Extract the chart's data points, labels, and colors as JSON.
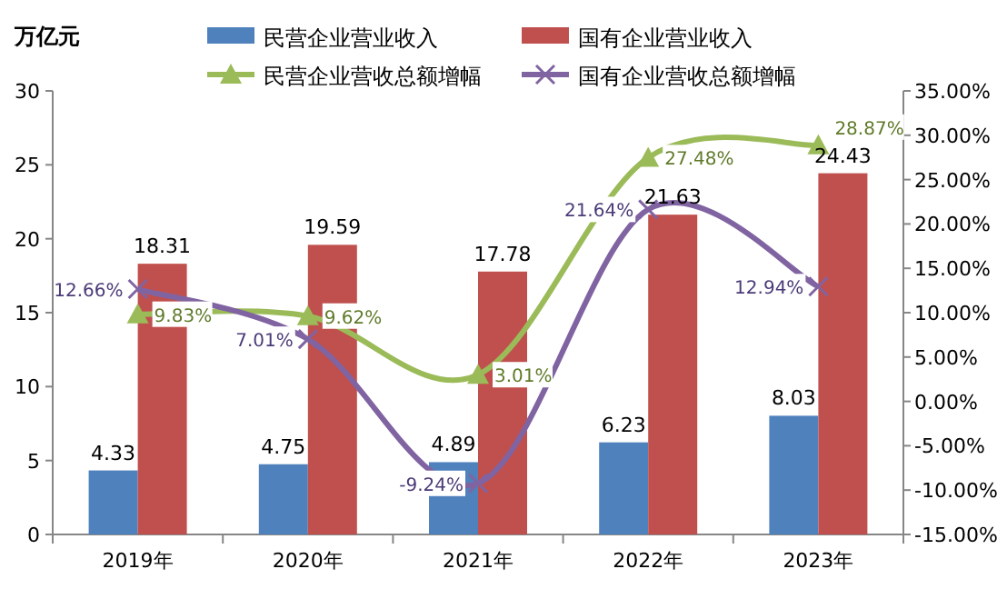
{
  "chart_data": {
    "type": "bar",
    "ylabel": "万亿元",
    "categories": [
      "2019年",
      "2020年",
      "2021年",
      "2022年",
      "2023年"
    ],
    "series": [
      {
        "name": "民营企业营业收入",
        "color": "#4f81bd",
        "values": [
          4.33,
          4.75,
          4.89,
          6.23,
          8.03
        ],
        "value_labels": [
          "4.33",
          "4.75",
          "4.89",
          "6.23",
          "8.03"
        ]
      },
      {
        "name": "国有企业营业收入",
        "color": "#c0504d",
        "values": [
          18.31,
          19.59,
          17.78,
          21.63,
          24.43
        ],
        "value_labels": [
          "18.31",
          "19.59",
          "17.78",
          "21.63",
          "24.43"
        ]
      },
      {
        "name": "民营企业营收总额增幅",
        "type": "line",
        "axis": "y2",
        "color": "#9bbb59",
        "marker": "triangle",
        "values": [
          9.83,
          9.62,
          3.01,
          27.48,
          28.87
        ],
        "value_labels": [
          "9.83%",
          "9.62%",
          "3.01%",
          "27.48%",
          "28.87%"
        ]
      },
      {
        "name": "国有企业营收总额增幅",
        "type": "line",
        "axis": "y2",
        "color": "#8064a2",
        "marker": "cross",
        "values": [
          12.66,
          7.01,
          -9.24,
          21.64,
          12.94
        ],
        "value_labels": [
          "12.66%",
          "7.01%",
          "-9.24%",
          "21.64%",
          "12.94%"
        ]
      }
    ],
    "ylim": [
      0,
      30
    ],
    "yticks": [
      0,
      5,
      10,
      15,
      20,
      25,
      30
    ],
    "y2lim": [
      -15,
      35
    ],
    "y2ticks": [
      {
        "value": -15,
        "label": "-15.00%"
      },
      {
        "value": -10,
        "label": "-10.00%"
      },
      {
        "value": -5,
        "label": "-5.00%"
      },
      {
        "value": 0,
        "label": "0.00%"
      },
      {
        "value": 5,
        "label": "5.00%"
      },
      {
        "value": 10,
        "label": "10.00%"
      },
      {
        "value": 15,
        "label": "15.00%"
      },
      {
        "value": 20,
        "label": "20.00%"
      },
      {
        "value": 25,
        "label": "25.00%"
      },
      {
        "value": 30,
        "label": "30.00%"
      },
      {
        "value": 35,
        "label": "35.00%"
      }
    ],
    "legend": "top",
    "grid": false
  }
}
